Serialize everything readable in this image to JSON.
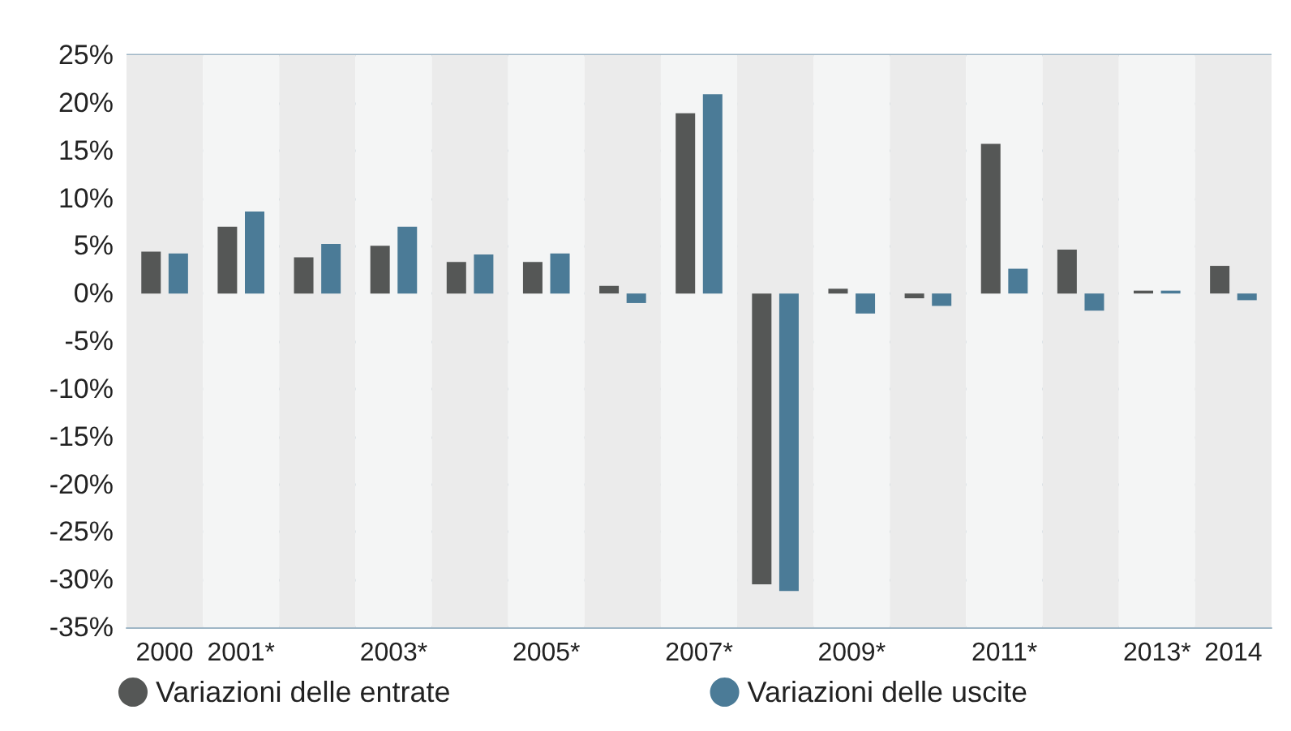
{
  "chart_data": {
    "type": "bar",
    "categories": [
      "2000",
      "2001*",
      null,
      "2003*",
      null,
      "2005*",
      null,
      "2007*",
      null,
      "2009*",
      null,
      "2011*",
      null,
      "2013*",
      "2014"
    ],
    "series": [
      {
        "name": "Variazioni delle entrate",
        "color": "#555756",
        "values": [
          4.4,
          7.0,
          3.8,
          5.0,
          3.3,
          3.3,
          0.8,
          18.9,
          -30.5,
          0.5,
          -0.5,
          15.7,
          4.6,
          0.3,
          2.9
        ]
      },
      {
        "name": "Variazioni delle uscite",
        "color": "#4b7b97",
        "values": [
          4.2,
          8.6,
          5.2,
          7.0,
          4.1,
          4.2,
          -1.0,
          20.9,
          -31.2,
          -2.1,
          -1.3,
          2.6,
          -1.8,
          0.3,
          -0.7
        ]
      }
    ],
    "ylim": [
      -35,
      25
    ],
    "yticks": [
      {
        "value": -35,
        "label": "-35%"
      },
      {
        "value": -30,
        "label": "-30%"
      },
      {
        "value": -25,
        "label": "-25%"
      },
      {
        "value": -20,
        "label": "-20%"
      },
      {
        "value": -15,
        "label": "-15%"
      },
      {
        "value": -10,
        "label": "-10%"
      },
      {
        "value": -5,
        "label": "-5%"
      },
      {
        "value": 0,
        "label": "0%"
      },
      {
        "value": 5,
        "label": "5%"
      },
      {
        "value": 10,
        "label": "10%"
      },
      {
        "value": 15,
        "label": "15%"
      },
      {
        "value": 20,
        "label": "20%"
      },
      {
        "value": 25,
        "label": "25%"
      }
    ],
    "grid": "y",
    "legend": "bottom left"
  }
}
